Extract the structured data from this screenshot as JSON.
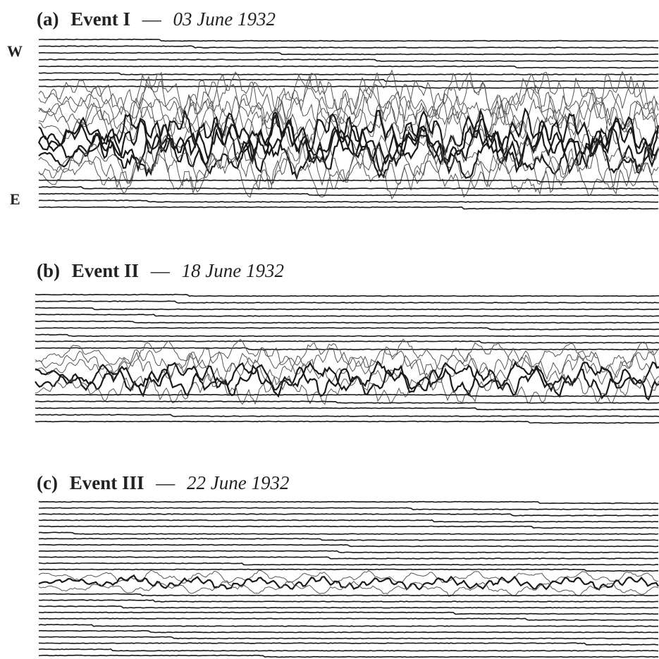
{
  "axis_labels": {
    "top": "W",
    "bottom": "E"
  },
  "panels": [
    {
      "label": "(a)",
      "event": "Event I",
      "separator": "—",
      "date": "03 June 1932"
    },
    {
      "label": "(b)",
      "event": "Event II",
      "separator": "—",
      "date": "18 June 1932"
    },
    {
      "label": "(c)",
      "event": "Event III",
      "separator": "—",
      "date": "22 June 1932"
    }
  ]
}
